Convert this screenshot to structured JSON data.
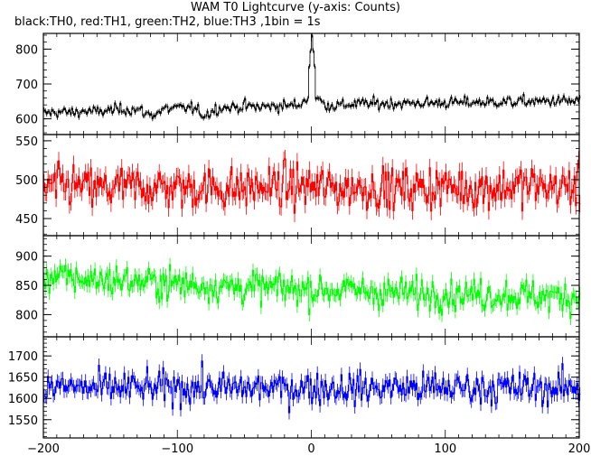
{
  "chart_data": {
    "type": "line",
    "title": "WAM T0 Lightcurve (y-axis: Counts)",
    "subtitle": "black:TH0, red:TH1, green:TH2, blue:TH3 ,1bin = 1s",
    "xlim": [
      -200,
      200
    ],
    "x_ticks": [
      -200,
      -100,
      0,
      100,
      200
    ],
    "x_tick_labels": [
      "−200",
      "−100",
      "0",
      "100",
      "200"
    ],
    "bin_seconds": 1,
    "panels": [
      {
        "series_label": "TH0",
        "color": "#000000",
        "ylim": [
          555,
          845
        ],
        "y_ticks": [
          600,
          700,
          800
        ],
        "baseline_start": 615,
        "baseline_end": 650,
        "noise": 15,
        "spike": {
          "x": 0,
          "peak": 840
        },
        "values": [
          [
            -200,
            615
          ],
          [
            -190,
            620
          ],
          [
            -180,
            618
          ],
          [
            -170,
            622
          ],
          [
            -160,
            620
          ],
          [
            -150,
            625
          ],
          [
            -140,
            628
          ],
          [
            -130,
            626
          ],
          [
            -120,
            610
          ],
          [
            -110,
            628
          ],
          [
            -100,
            630
          ],
          [
            -90,
            632
          ],
          [
            -80,
            610
          ],
          [
            -70,
            632
          ],
          [
            -60,
            633
          ],
          [
            -50,
            636
          ],
          [
            -40,
            634
          ],
          [
            -30,
            636
          ],
          [
            -20,
            638
          ],
          [
            -10,
            640
          ],
          [
            -3,
            660
          ],
          [
            0,
            840
          ],
          [
            3,
            662
          ],
          [
            10,
            640
          ],
          [
            20,
            638
          ],
          [
            30,
            642
          ],
          [
            40,
            644
          ],
          [
            50,
            643
          ],
          [
            60,
            645
          ],
          [
            70,
            644
          ],
          [
            80,
            646
          ],
          [
            90,
            645
          ],
          [
            100,
            647
          ],
          [
            110,
            646
          ],
          [
            120,
            648
          ],
          [
            130,
            647
          ],
          [
            140,
            649
          ],
          [
            150,
            648
          ],
          [
            160,
            650
          ],
          [
            170,
            649
          ],
          [
            180,
            652
          ],
          [
            190,
            651
          ],
          [
            200,
            650
          ]
        ]
      },
      {
        "series_label": "TH1",
        "color": "#ff0000",
        "ylim": [
          428,
          558
        ],
        "y_ticks": [
          450,
          500,
          550
        ],
        "mean": 490,
        "noise": 25,
        "values": [
          [
            -200,
            490
          ],
          [
            -180,
            492
          ],
          [
            -160,
            488
          ],
          [
            -140,
            490
          ],
          [
            -120,
            491
          ],
          [
            -100,
            489
          ],
          [
            -80,
            490
          ],
          [
            -60,
            488
          ],
          [
            -40,
            490
          ],
          [
            -20,
            492
          ],
          [
            0,
            491
          ],
          [
            20,
            489
          ],
          [
            40,
            490
          ],
          [
            60,
            488
          ],
          [
            80,
            490
          ],
          [
            100,
            491
          ],
          [
            120,
            489
          ],
          [
            140,
            490
          ],
          [
            160,
            492
          ],
          [
            180,
            491
          ],
          [
            200,
            490
          ]
        ]
      },
      {
        "series_label": "TH2",
        "color": "#00ff00",
        "ylim": [
          762,
          935
        ],
        "y_ticks": [
          800,
          850,
          900
        ],
        "baseline_start": 865,
        "baseline_end": 830,
        "noise": 25,
        "values": [
          [
            -200,
            865
          ],
          [
            -180,
            862
          ],
          [
            -160,
            860
          ],
          [
            -140,
            858
          ],
          [
            -120,
            855
          ],
          [
            -100,
            853
          ],
          [
            -80,
            850
          ],
          [
            -60,
            848
          ],
          [
            -40,
            846
          ],
          [
            -20,
            845
          ],
          [
            0,
            843
          ],
          [
            20,
            842
          ],
          [
            40,
            840
          ],
          [
            60,
            838
          ],
          [
            80,
            837
          ],
          [
            100,
            836
          ],
          [
            120,
            835
          ],
          [
            140,
            834
          ],
          [
            160,
            833
          ],
          [
            180,
            831
          ],
          [
            200,
            830
          ]
        ]
      },
      {
        "series_label": "TH3",
        "color": "#0000ff",
        "ylim": [
          1507,
          1745
        ],
        "y_ticks": [
          1550,
          1600,
          1650,
          1700
        ],
        "mean": 1625,
        "noise": 35,
        "values": [
          [
            -200,
            1625
          ],
          [
            -180,
            1627
          ],
          [
            -160,
            1623
          ],
          [
            -140,
            1626
          ],
          [
            -120,
            1624
          ],
          [
            -100,
            1625
          ],
          [
            -80,
            1628
          ],
          [
            -60,
            1622
          ],
          [
            -40,
            1625
          ],
          [
            -20,
            1624
          ],
          [
            0,
            1626
          ],
          [
            20,
            1625
          ],
          [
            40,
            1623
          ],
          [
            60,
            1627
          ],
          [
            80,
            1624
          ],
          [
            100,
            1625
          ],
          [
            120,
            1626
          ],
          [
            140,
            1624
          ],
          [
            160,
            1625
          ],
          [
            180,
            1623
          ],
          [
            200,
            1625
          ]
        ]
      }
    ]
  }
}
